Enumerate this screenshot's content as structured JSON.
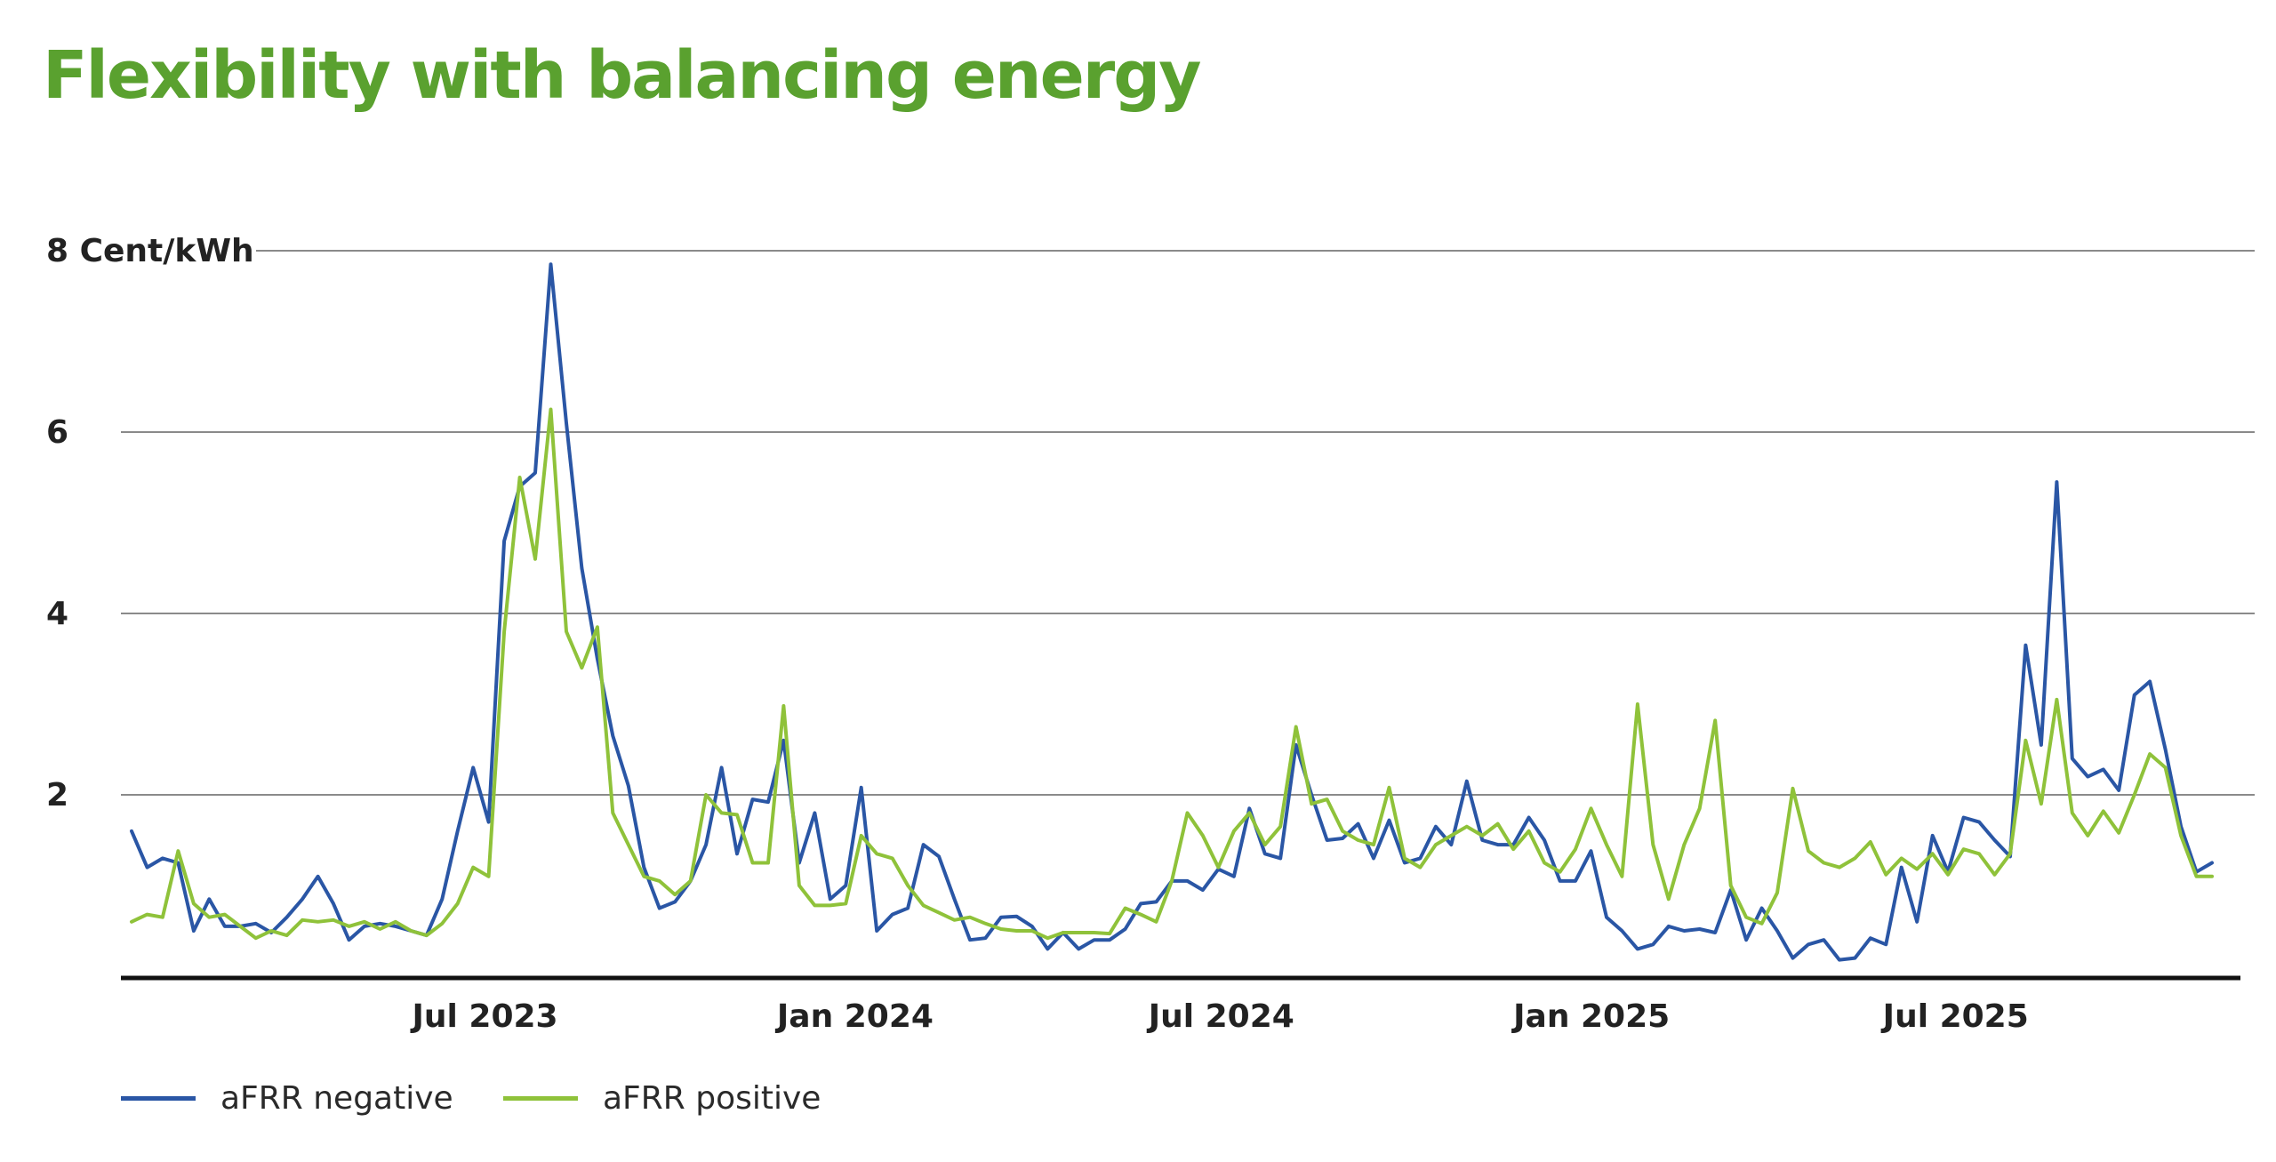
{
  "title": "Flexibility with balancing energy",
  "chart_data": {
    "type": "line",
    "unit_label": "8 Cent/kWh",
    "y_ticks": [
      {
        "value": 8,
        "label": "8 Cent/kWh"
      },
      {
        "value": 6,
        "label": "6"
      },
      {
        "value": 4,
        "label": "4"
      },
      {
        "value": 2,
        "label": "2"
      }
    ],
    "ylim": [
      0,
      8
    ],
    "x_ticks": [
      {
        "date": "2023-07",
        "label": "Jul 2023"
      },
      {
        "date": "2024-01",
        "label": "Jan 2024"
      },
      {
        "date": "2024-07",
        "label": "Jul 2024"
      },
      {
        "date": "2025-01",
        "label": "Jan 2025"
      },
      {
        "date": "2025-07",
        "label": "Jul 2025"
      }
    ],
    "xlim": [
      "2023-01-01",
      "2025-11-16"
    ],
    "frequency": "weekly",
    "grid": true,
    "legend_position": "bottom-left",
    "series": [
      {
        "name": "aFRR negative",
        "color": "#2a56a5",
        "values": [
          1.6,
          1.2,
          1.3,
          1.25,
          0.5,
          0.85,
          0.55,
          0.55,
          0.58,
          0.48,
          0.65,
          0.85,
          1.1,
          0.8,
          0.4,
          0.55,
          0.58,
          0.55,
          0.5,
          0.45,
          0.85,
          1.6,
          2.3,
          1.7,
          4.8,
          5.4,
          5.55,
          7.85,
          6.1,
          4.5,
          3.5,
          2.65,
          2.1,
          1.2,
          0.75,
          0.82,
          1.05,
          1.45,
          2.3,
          1.35,
          1.95,
          1.92,
          2.6,
          1.25,
          1.8,
          0.85,
          1.0,
          2.08,
          0.5,
          0.68,
          0.75,
          1.45,
          1.32,
          0.85,
          0.4,
          0.42,
          0.65,
          0.66,
          0.55,
          0.3,
          0.48,
          0.3,
          0.4,
          0.4,
          0.52,
          0.8,
          0.82,
          1.05,
          1.05,
          0.95,
          1.18,
          1.1,
          1.85,
          1.35,
          1.3,
          2.55,
          2.0,
          1.5,
          1.52,
          1.68,
          1.3,
          1.72,
          1.25,
          1.3,
          1.65,
          1.45,
          2.15,
          1.5,
          1.45,
          1.45,
          1.75,
          1.5,
          1.05,
          1.05,
          1.38,
          0.65,
          0.5,
          0.3,
          0.35,
          0.55,
          0.5,
          0.52,
          0.48,
          0.95,
          0.4,
          0.75,
          0.5,
          0.2,
          0.35,
          0.4,
          0.18,
          0.2,
          0.42,
          0.35,
          1.2,
          0.6,
          1.55,
          1.15,
          1.75,
          1.7,
          1.5,
          1.32,
          3.65,
          2.55,
          5.45,
          2.4,
          2.2,
          2.28,
          2.05,
          3.1,
          3.25,
          2.5,
          1.65,
          1.15,
          1.25
        ]
      },
      {
        "name": "aFRR positive",
        "color": "#8fc23a",
        "values": [
          0.6,
          0.68,
          0.65,
          1.38,
          0.8,
          0.65,
          0.68,
          0.55,
          0.42,
          0.5,
          0.45,
          0.62,
          0.6,
          0.62,
          0.55,
          0.6,
          0.52,
          0.6,
          0.5,
          0.45,
          0.58,
          0.8,
          1.2,
          1.1,
          3.8,
          5.5,
          4.6,
          6.25,
          3.8,
          3.4,
          3.85,
          1.8,
          1.45,
          1.1,
          1.05,
          0.9,
          1.05,
          2.0,
          1.8,
          1.78,
          1.25,
          1.25,
          2.98,
          1.0,
          0.78,
          0.78,
          0.8,
          1.55,
          1.35,
          1.3,
          1.0,
          0.78,
          0.7,
          0.62,
          0.65,
          0.58,
          0.52,
          0.5,
          0.5,
          0.42,
          0.48,
          0.48,
          0.48,
          0.47,
          0.75,
          0.68,
          0.6,
          1.05,
          1.8,
          1.55,
          1.2,
          1.6,
          1.8,
          1.45,
          1.65,
          2.75,
          1.9,
          1.95,
          1.6,
          1.5,
          1.45,
          2.08,
          1.3,
          1.2,
          1.45,
          1.55,
          1.65,
          1.55,
          1.68,
          1.4,
          1.6,
          1.25,
          1.15,
          1.4,
          1.85,
          1.45,
          1.1,
          3.0,
          1.45,
          0.85,
          1.45,
          1.85,
          2.82,
          1.0,
          0.65,
          0.58,
          0.92,
          2.07,
          1.38,
          1.25,
          1.2,
          1.3,
          1.48,
          1.12,
          1.3,
          1.18,
          1.35,
          1.12,
          1.4,
          1.35,
          1.12,
          1.35,
          2.6,
          1.9,
          3.05,
          1.8,
          1.55,
          1.82,
          1.58,
          2.0,
          2.45,
          2.3,
          1.55,
          1.1,
          1.1
        ]
      }
    ]
  }
}
